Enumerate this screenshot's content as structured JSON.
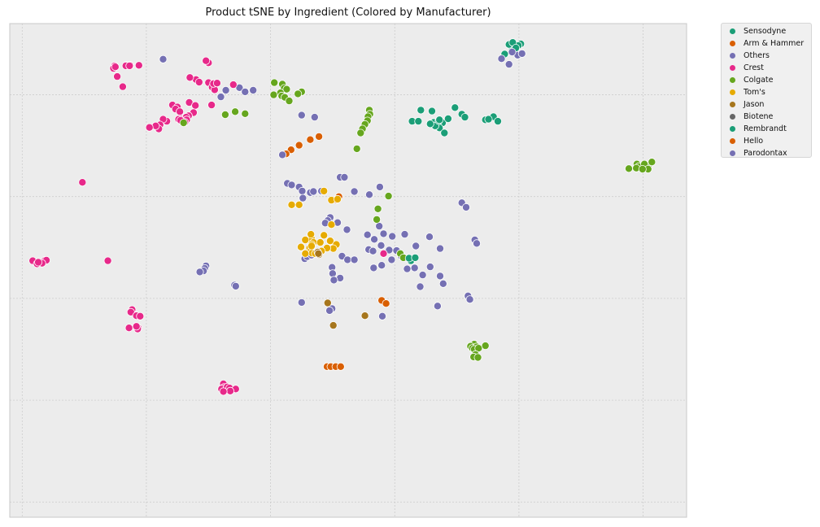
{
  "chart_data": {
    "type": "scatter",
    "title": "Product tSNE by Ingredient (Colored by Manufacturer)",
    "xlabel": "",
    "ylabel": "",
    "xlim": [
      -52,
      57
    ],
    "ylim": [
      -43,
      54
    ],
    "grid": true,
    "tick_labels_shown": false,
    "legend_position": "outside-top-right",
    "series": [
      {
        "name": "Sensodyne",
        "color": "#1b9e77",
        "points": []
      },
      {
        "name": "Arm & Hammer",
        "color": "#d95f02",
        "points": [
          [
            -2.2,
            31.8
          ],
          [
            -3.6,
            31.2
          ],
          [
            -5.4,
            30.1
          ],
          [
            -6.7,
            29.2
          ],
          [
            -7.5,
            28.4
          ],
          [
            1.0,
            20.0
          ],
          [
            0.6,
            19.4
          ],
          [
            7.9,
            -0.4
          ],
          [
            8.6,
            -1.0
          ],
          [
            -0.9,
            -13.4
          ],
          [
            -0.3,
            -13.4
          ],
          [
            0.5,
            -13.4
          ],
          [
            1.3,
            -13.4
          ]
        ]
      },
      {
        "name": "Others",
        "color": "#7570b3",
        "points": [
          [
            28.4,
            46.0
          ],
          [
            27.2,
            47.1
          ],
          [
            29.8,
            47.8
          ],
          [
            30.5,
            48.1
          ],
          [
            28.9,
            48.4
          ],
          [
            -27.3,
            47.0
          ],
          [
            -17.2,
            40.9
          ],
          [
            -15.0,
            41.4
          ],
          [
            -14.1,
            40.6
          ],
          [
            -12.8,
            40.9
          ],
          [
            -18.0,
            39.6
          ],
          [
            -5.0,
            36.0
          ],
          [
            -8.1,
            28.2
          ],
          [
            -7.3,
            22.6
          ],
          [
            -6.6,
            22.3
          ],
          [
            -5.4,
            21.9
          ],
          [
            -4.9,
            21.1
          ],
          [
            -4.8,
            19.7
          ],
          [
            -3.6,
            20.8
          ],
          [
            -3.1,
            21.0
          ],
          [
            -1.8,
            21.1
          ],
          [
            1.2,
            23.8
          ],
          [
            1.9,
            23.8
          ],
          [
            3.5,
            21.0
          ],
          [
            5.9,
            20.4
          ],
          [
            7.6,
            21.9
          ],
          [
            -0.4,
            15.9
          ],
          [
            -0.8,
            15.3
          ],
          [
            -1.2,
            14.8
          ],
          [
            0.8,
            14.9
          ],
          [
            2.3,
            13.5
          ],
          [
            7.5,
            14.2
          ],
          [
            5.6,
            12.5
          ],
          [
            6.7,
            11.6
          ],
          [
            8.2,
            12.7
          ],
          [
            9.6,
            12.2
          ],
          [
            11.6,
            12.6
          ],
          [
            13.4,
            10.3
          ],
          [
            15.6,
            12.1
          ],
          [
            17.3,
            9.8
          ],
          [
            5.8,
            9.6
          ],
          [
            6.5,
            9.3
          ],
          [
            7.8,
            10.4
          ],
          [
            9.1,
            9.5
          ],
          [
            10.3,
            9.4
          ],
          [
            11.0,
            8.4
          ],
          [
            12.1,
            7.9
          ],
          [
            9.5,
            7.6
          ],
          [
            7.9,
            6.5
          ],
          [
            6.6,
            6.0
          ],
          [
            15.7,
            6.2
          ],
          [
            13.2,
            6.0
          ],
          [
            12.0,
            5.8
          ],
          [
            14.5,
            4.6
          ],
          [
            17.3,
            4.4
          ],
          [
            -20.4,
            6.4
          ],
          [
            -20.6,
            5.9
          ],
          [
            -20.8,
            5.4
          ],
          [
            -21.4,
            5.2
          ],
          [
            -4.5,
            7.8
          ],
          [
            -4.1,
            8.2
          ],
          [
            -3.4,
            8.5
          ],
          [
            1.5,
            8.3
          ],
          [
            2.4,
            7.6
          ],
          [
            3.5,
            7.6
          ],
          [
            -0.1,
            6.1
          ],
          [
            0.0,
            4.9
          ],
          [
            1.2,
            4.0
          ],
          [
            0.2,
            3.6
          ],
          [
            -15.8,
            2.6
          ],
          [
            -15.6,
            2.4
          ],
          [
            -5.0,
            -0.8
          ],
          [
            -0.1,
            -2.0
          ],
          [
            -0.5,
            -2.4
          ],
          [
            8.0,
            -3.5
          ],
          [
            14.1,
            2.3
          ],
          [
            17.8,
            2.9
          ],
          [
            16.9,
            -1.5
          ],
          [
            20.8,
            18.8
          ],
          [
            21.5,
            17.9
          ],
          [
            22.9,
            11.5
          ],
          [
            23.2,
            10.8
          ],
          [
            21.8,
            0.5
          ],
          [
            22.1,
            -0.2
          ],
          [
            -2.9,
            35.6
          ]
        ]
      },
      {
        "name": "Crest",
        "color": "#e7298a",
        "points": []
      },
      {
        "name": "Colgate",
        "color": "#66a61e",
        "points": []
      },
      {
        "name": "Tom's",
        "color": "#e6ab02",
        "points": []
      },
      {
        "name": "Jason",
        "color": "#a6761d",
        "points": []
      },
      {
        "name": "Biotene",
        "color": "#666666",
        "points": []
      },
      {
        "name": "Rembrandt",
        "color": "#1b9e77",
        "points": []
      },
      {
        "name": "Hello",
        "color": "#d95f02",
        "points": []
      },
      {
        "name": "Parodontax",
        "color": "#7570b3",
        "points": []
      }
    ],
    "series_points_extra": {
      "Sensodyne": [
        [
          30.3,
          50.0
        ],
        [
          29.9,
          49.7
        ],
        [
          28.9,
          49.2
        ],
        [
          28.4,
          49.9
        ],
        [
          29.0,
          50.3
        ],
        [
          29.5,
          49.2
        ],
        [
          27.7,
          48.0
        ],
        [
          14.2,
          37.0
        ],
        [
          16.0,
          36.8
        ],
        [
          19.7,
          37.5
        ],
        [
          20.8,
          36.2
        ],
        [
          21.3,
          35.6
        ],
        [
          25.9,
          35.7
        ],
        [
          16.3,
          34.6
        ],
        [
          17.1,
          34.9
        ],
        [
          17.7,
          34.5
        ],
        [
          12.8,
          34.8
        ],
        [
          13.8,
          34.8
        ],
        [
          17.2,
          33.5
        ],
        [
          16.5,
          33.9
        ],
        [
          15.7,
          34.3
        ],
        [
          17.1,
          34.9
        ],
        [
          17.2,
          35.1
        ],
        [
          18.6,
          35.3
        ],
        [
          24.6,
          35.1
        ],
        [
          25.1,
          35.2
        ],
        [
          26.6,
          34.8
        ],
        [
          18.0,
          32.5
        ]
      ],
      "Crest": [
        [
          -35.1,
          45.7
        ],
        [
          -35.3,
          45.2
        ],
        [
          -35.0,
          45.5
        ],
        [
          -33.2,
          45.8
        ],
        [
          -32.6,
          45.8
        ],
        [
          -33.3,
          45.7
        ],
        [
          -32.7,
          45.7
        ],
        [
          -31.2,
          45.8
        ],
        [
          -34.7,
          43.6
        ],
        [
          -33.8,
          41.6
        ],
        [
          -20.0,
          46.3
        ],
        [
          -20.4,
          46.7
        ],
        [
          -22.0,
          43.0
        ],
        [
          -23.0,
          43.4
        ],
        [
          -20.0,
          42.4
        ],
        [
          -19.4,
          41.5
        ],
        [
          -19.0,
          41.0
        ],
        [
          -19.2,
          42.2
        ],
        [
          -21.5,
          42.5
        ],
        [
          -16.0,
          42.0
        ],
        [
          -18.6,
          42.3
        ],
        [
          -23.1,
          38.5
        ],
        [
          -25.8,
          38.0
        ],
        [
          -19.5,
          38.0
        ],
        [
          -25.0,
          37.6
        ],
        [
          -25.3,
          37.2
        ],
        [
          -24.6,
          36.7
        ],
        [
          -22.1,
          37.9
        ],
        [
          -22.4,
          36.5
        ],
        [
          -23.2,
          35.9
        ],
        [
          -23.6,
          35.6
        ],
        [
          -24.6,
          35.3
        ],
        [
          -24.8,
          35.2
        ],
        [
          -24.3,
          34.9
        ],
        [
          -23.5,
          35.1
        ],
        [
          -23.8,
          34.6
        ],
        [
          -24.5,
          35.0
        ],
        [
          -26.7,
          34.8
        ],
        [
          -27.3,
          35.2
        ],
        [
          -27.8,
          34.1
        ],
        [
          -28.0,
          33.3
        ],
        [
          -28.5,
          33.9
        ],
        [
          -29.5,
          33.6
        ],
        [
          -40.3,
          22.8
        ],
        [
          -48.0,
          7.2
        ],
        [
          -48.3,
          7.4
        ],
        [
          -47.6,
          6.8
        ],
        [
          -46.8,
          7.1
        ],
        [
          -46.3,
          7.5
        ],
        [
          -46.1,
          7.5
        ],
        [
          -46.8,
          6.9
        ],
        [
          -47.4,
          7.1
        ],
        [
          -36.2,
          7.4
        ],
        [
          -32.3,
          -2.2
        ],
        [
          -32.5,
          -2.7
        ],
        [
          -31.6,
          -3.4
        ],
        [
          -31.0,
          -3.5
        ],
        [
          -31.3,
          -5.8
        ],
        [
          -32.8,
          -5.8
        ],
        [
          -31.4,
          -6.0
        ],
        [
          -31.6,
          -5.5
        ],
        [
          -17.6,
          -16.8
        ],
        [
          -17.5,
          -17.5
        ],
        [
          -17.9,
          -17.8
        ],
        [
          -17.0,
          -17.4
        ],
        [
          -16.6,
          -17.6
        ],
        [
          -15.6,
          -17.8
        ],
        [
          -16.5,
          -18.2
        ],
        [
          -17.6,
          -18.3
        ],
        [
          8.2,
          8.8
        ]
      ],
      "Colgate": [
        [
          -8.1,
          42.1
        ],
        [
          -7.8,
          41.3
        ],
        [
          -9.4,
          42.4
        ],
        [
          -7.4,
          41.1
        ],
        [
          -8.4,
          40.4
        ],
        [
          -9.5,
          40.0
        ],
        [
          -8.2,
          39.8
        ],
        [
          -7.7,
          39.5
        ],
        [
          -7.0,
          38.8
        ],
        [
          -5.0,
          40.6
        ],
        [
          -5.6,
          40.2
        ],
        [
          -15.7,
          36.7
        ],
        [
          -17.3,
          36.1
        ],
        [
          -14.1,
          36.3
        ],
        [
          5.9,
          37.0
        ],
        [
          6.0,
          36.2
        ],
        [
          5.7,
          35.7
        ],
        [
          5.6,
          34.9
        ],
        [
          5.2,
          34.2
        ],
        [
          4.8,
          33.3
        ],
        [
          4.5,
          32.5
        ],
        [
          3.9,
          29.4
        ],
        [
          49.0,
          26.4
        ],
        [
          49.3,
          25.9
        ],
        [
          50.8,
          26.0
        ],
        [
          50.2,
          26.4
        ],
        [
          51.4,
          26.8
        ],
        [
          47.7,
          25.5
        ],
        [
          50.8,
          25.4
        ],
        [
          48.9,
          25.6
        ],
        [
          49.9,
          25.4
        ],
        [
          -24.0,
          34.5
        ],
        [
          7.3,
          17.6
        ],
        [
          9.0,
          20.1
        ],
        [
          7.1,
          15.5
        ],
        [
          10.9,
          8.8
        ],
        [
          11.4,
          8.0
        ],
        [
          22.8,
          -9.0
        ],
        [
          22.2,
          -9.4
        ],
        [
          22.5,
          -9.8
        ],
        [
          23.2,
          -9.5
        ],
        [
          24.6,
          -9.3
        ],
        [
          22.8,
          -10.0
        ],
        [
          23.5,
          -9.8
        ],
        [
          23.0,
          -11.0
        ],
        [
          22.7,
          -11.5
        ],
        [
          23.4,
          -11.6
        ]
      ],
      "Tom's": [
        [
          -5.4,
          18.4
        ],
        [
          -6.6,
          18.4
        ],
        [
          -1.4,
          21.1
        ],
        [
          -0.2,
          19.3
        ],
        [
          0.8,
          19.5
        ],
        [
          -0.2,
          14.5
        ],
        [
          -3.4,
          11.7
        ],
        [
          -3.1,
          11.0
        ],
        [
          -3.4,
          10.6
        ],
        [
          -3.7,
          9.9
        ],
        [
          -3.5,
          9.3
        ],
        [
          -2.0,
          11.0
        ],
        [
          -0.4,
          11.3
        ],
        [
          0.6,
          10.6
        ],
        [
          0.1,
          9.8
        ],
        [
          -0.9,
          9.9
        ],
        [
          -1.8,
          9.3
        ],
        [
          -3.3,
          8.9
        ],
        [
          -4.4,
          8.8
        ],
        [
          -2.8,
          8.8
        ],
        [
          -3.4,
          10.3
        ],
        [
          -5.1,
          10.1
        ],
        [
          -1.4,
          12.4
        ],
        [
          -3.5,
          12.6
        ],
        [
          -4.4,
          11.5
        ]
      ],
      "Jason": [
        [
          -2.4,
          9.1
        ],
        [
          -2.2,
          8.6
        ],
        [
          -2.3,
          8.8
        ],
        [
          -0.8,
          -0.9
        ],
        [
          0.1,
          -5.3
        ],
        [
          5.2,
          -3.4
        ]
      ],
      "Biotene": [],
      "Rembrandt": [
        [
          12.6,
          7.4
        ],
        [
          12.3,
          7.9
        ],
        [
          13.3,
          8.0
        ]
      ],
      "Hello": [],
      "Parodontax": []
    }
  },
  "legend": {
    "items": [
      {
        "label": "Sensodyne",
        "color": "#1b9e77"
      },
      {
        "label": "Arm & Hammer",
        "color": "#d95f02"
      },
      {
        "label": "Others",
        "color": "#7570b3"
      },
      {
        "label": "Crest",
        "color": "#e7298a"
      },
      {
        "label": "Colgate",
        "color": "#66a61e"
      },
      {
        "label": "Tom's",
        "color": "#e6ab02"
      },
      {
        "label": "Jason",
        "color": "#a6761d"
      },
      {
        "label": "Biotene",
        "color": "#666666"
      },
      {
        "label": "Rembrandt",
        "color": "#1b9e77"
      },
      {
        "label": "Hello",
        "color": "#d95f02"
      },
      {
        "label": "Parodontax",
        "color": "#7570b3"
      }
    ]
  },
  "style": {
    "plot_background": "#ececec",
    "grid_color": "#c8c8c8",
    "axes_border": "#c8c8c8",
    "marker_edge": "#ffffff"
  }
}
